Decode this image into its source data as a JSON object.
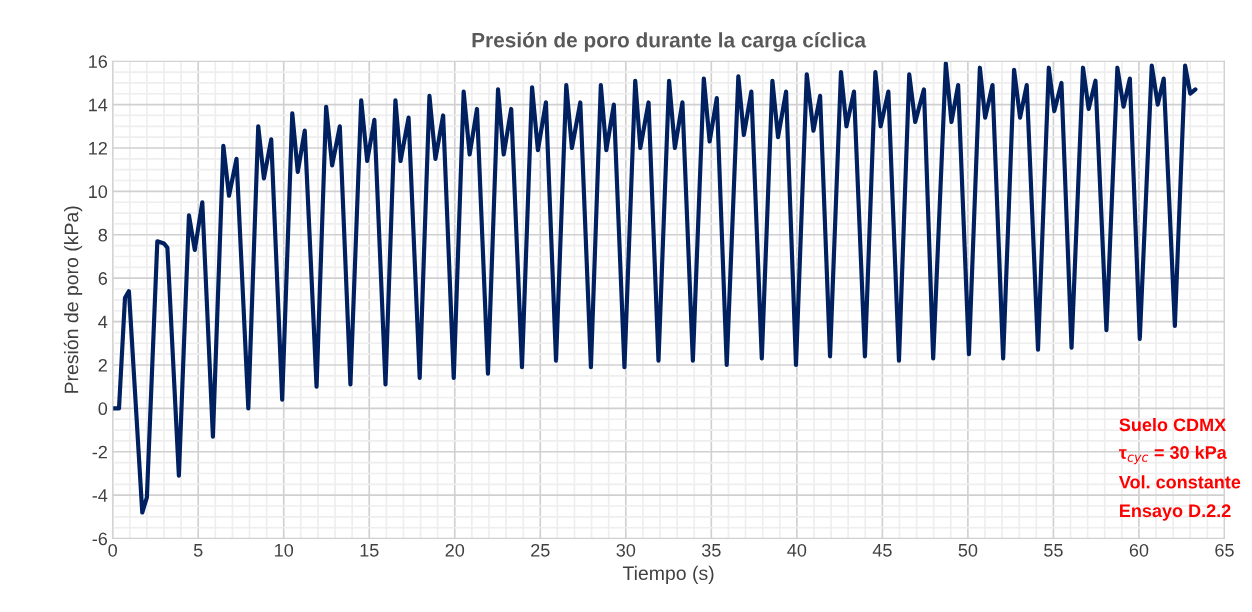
{
  "chart_data": {
    "type": "line",
    "title": "Presión de poro durante la carga cíclica",
    "xlabel": "Tiempo (s)",
    "ylabel": "Presión de poro (kPa)",
    "annotations": [
      "Suelo CDMX",
      "τ$_{cyc}$ = 30 kPa",
      "Vol. constante",
      "Ensayo D.2.2"
    ],
    "xlim": [
      0,
      65
    ],
    "ylim": [
      -6,
      16
    ],
    "xticks": [
      0,
      5,
      10,
      15,
      20,
      25,
      30,
      35,
      40,
      45,
      50,
      55,
      60,
      65
    ],
    "yticks": [
      -6,
      -4,
      -2,
      0,
      2,
      4,
      6,
      8,
      10,
      12,
      14,
      16
    ],
    "grid": true,
    "marker": "none",
    "line_style": "solid",
    "series": [
      {
        "color": "#002060",
        "x": [
          0,
          0.37,
          0.72,
          0.95,
          1.73,
          2.0,
          2.61,
          3.0,
          3.2,
          3.87,
          4.46,
          4.8,
          5.24,
          5.86,
          6.47,
          6.8,
          7.24,
          7.93,
          8.51,
          8.84,
          9.27,
          9.91,
          10.5,
          10.82,
          11.23,
          11.92,
          12.48,
          12.83,
          13.28,
          13.9,
          14.53,
          14.88,
          15.3,
          15.95,
          16.53,
          16.83,
          17.3,
          17.95,
          18.52,
          18.87,
          19.32,
          19.94,
          20.52,
          20.87,
          21.3,
          21.94,
          22.53,
          22.86,
          23.3,
          23.93,
          24.52,
          24.86,
          25.33,
          25.92,
          26.52,
          26.85,
          27.34,
          27.96,
          28.54,
          28.86,
          29.3,
          29.92,
          30.55,
          30.85,
          31.33,
          31.91,
          32.53,
          32.87,
          33.31,
          33.92,
          34.56,
          34.9,
          35.32,
          35.9,
          36.58,
          36.9,
          37.34,
          37.95,
          38.57,
          38.9,
          39.37,
          39.95,
          40.58,
          40.97,
          41.36,
          41.94,
          42.58,
          42.9,
          43.34,
          43.98,
          44.59,
          44.9,
          45.35,
          45.97,
          46.57,
          46.92,
          47.43,
          47.97,
          48.71,
          49.04,
          49.43,
          50.06,
          50.7,
          51.01,
          51.44,
          52.06,
          52.7,
          53.05,
          53.44,
          54.1,
          54.73,
          55.05,
          55.47,
          56.06,
          56.73,
          57.06,
          57.46,
          58.1,
          58.74,
          59.1,
          59.47,
          60.05,
          60.75,
          61.1,
          61.45,
          62.1,
          62.7,
          63.0,
          63.3
        ],
        "values": [
          0,
          0,
          5.1,
          5.4,
          -4.8,
          -4.1,
          7.7,
          7.6,
          7.4,
          -3.1,
          8.9,
          7.3,
          9.5,
          -1.3,
          12.1,
          9.8,
          11.5,
          0.0,
          13.0,
          10.6,
          12.4,
          0.4,
          13.6,
          10.9,
          12.8,
          1.0,
          13.9,
          11.2,
          13.0,
          1.1,
          14.2,
          11.4,
          13.3,
          1.1,
          14.2,
          11.4,
          13.4,
          1.4,
          14.4,
          11.5,
          13.5,
          1.4,
          14.6,
          11.7,
          13.8,
          1.6,
          14.7,
          11.7,
          13.8,
          1.9,
          14.8,
          11.9,
          14.1,
          2.2,
          14.9,
          12.0,
          14.1,
          1.9,
          14.9,
          11.9,
          14.0,
          1.9,
          15.1,
          12.0,
          14.1,
          2.2,
          15.1,
          12.0,
          14.1,
          2.2,
          15.2,
          12.3,
          14.3,
          2.0,
          15.3,
          12.6,
          14.6,
          2.3,
          15.1,
          12.5,
          14.6,
          2.0,
          15.4,
          12.8,
          14.4,
          2.4,
          15.5,
          13.0,
          14.6,
          2.4,
          15.5,
          13.0,
          14.6,
          2.2,
          15.4,
          13.2,
          14.7,
          2.3,
          15.9,
          13.2,
          14.9,
          2.5,
          15.7,
          13.4,
          14.9,
          2.3,
          15.6,
          13.4,
          14.9,
          2.7,
          15.7,
          13.7,
          15.0,
          2.8,
          15.7,
          13.8,
          15.1,
          3.6,
          15.7,
          13.9,
          15.2,
          3.2,
          15.8,
          14.0,
          15.2,
          3.8,
          15.8,
          14.5,
          14.7
        ]
      }
    ]
  }
}
